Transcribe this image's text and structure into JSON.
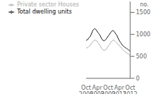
{
  "chart_data": {
    "type": "line",
    "ylabel": "no.",
    "categories": [
      "Oct\n2006",
      null,
      null,
      null,
      null,
      null,
      null,
      null,
      null,
      null,
      null,
      null,
      null,
      null,
      null,
      null,
      null,
      null,
      "Apr\n2008",
      null,
      null,
      null,
      null,
      null,
      null,
      null,
      null,
      null,
      null,
      null,
      null,
      null,
      null,
      null,
      null,
      null,
      "Oct\n2009",
      null,
      null,
      null,
      null,
      null,
      null,
      null,
      null,
      null,
      null,
      null,
      null,
      null,
      null,
      null,
      null,
      null,
      "Apr\n2011",
      null,
      null,
      null,
      null,
      null,
      null,
      null,
      null,
      null,
      null,
      null,
      null,
      null,
      null,
      null,
      null,
      null,
      "Oct\n2012"
    ],
    "series": [
      {
        "name": "Total dwelling units",
        "color": "#111111",
        "values": [
          870,
          870,
          875,
          890,
          910,
          930,
          940,
          960,
          990,
          1020,
          1060,
          1090,
          1110,
          1120,
          1130,
          1120,
          1110,
          1090,
          1070,
          1050,
          1030,
          1010,
          990,
          970,
          940,
          910,
          890,
          870,
          860,
          860,
          860,
          870,
          880,
          900,
          920,
          940,
          960,
          980,
          1000,
          1020,
          1040,
          1060,
          1070,
          1080,
          1090,
          1080,
          1060,
          1040,
          1020,
          1000,
          980,
          950,
          920,
          890,
          860,
          840,
          820,
          800,
          780,
          760,
          740,
          730,
          720,
          710,
          700,
          690,
          680,
          670,
          660,
          650,
          640,
          630,
          620
        ]
      },
      {
        "name": "Private sector Houses",
        "color": "#aaaaaa",
        "values": [
          690,
          695,
          700,
          710,
          720,
          730,
          745,
          760,
          780,
          800,
          820,
          840,
          850,
          860,
          870,
          870,
          865,
          855,
          840,
          820,
          800,
          780,
          760,
          740,
          710,
          690,
          670,
          655,
          645,
          640,
          638,
          640,
          650,
          665,
          685,
          710,
          730,
          750,
          770,
          790,
          810,
          830,
          845,
          860,
          870,
          870,
          860,
          850,
          835,
          820,
          805,
          790,
          775,
          760,
          745,
          730,
          715,
          700,
          685,
          670,
          655,
          640,
          625,
          610,
          600,
          590,
          580,
          570,
          560,
          550,
          540,
          530,
          520
        ]
      }
    ],
    "ylim": [
      0,
      1750
    ],
    "yticks": [
      0,
      500,
      1000,
      1500
    ],
    "legend": "upper left",
    "grid": false
  }
}
